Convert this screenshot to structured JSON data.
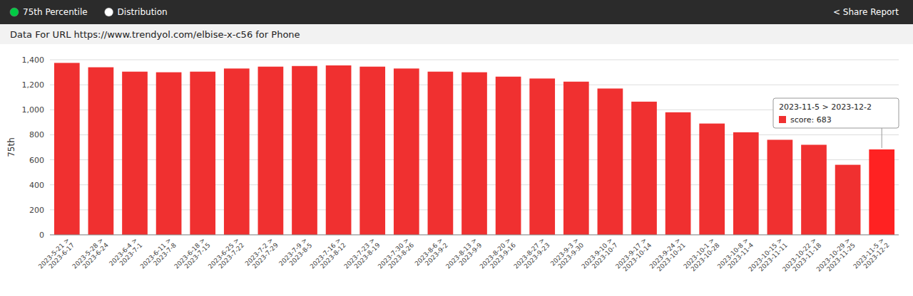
{
  "chart_data": {
    "type": "bar",
    "title": "Data For URL https://www.trendyol.com/elbise-x-c56 for Phone",
    "y_label": "75th",
    "categories": [
      "2023-5-21 >\n2023-6-17",
      "2023-5-28 >\n2023-6-24",
      "2023-6-4 >\n2023-7-1",
      "2023-6-11 >\n2023-7-8",
      "2023-6-18 >\n2023-7-15",
      "2023-6-25 >\n2023-7-22",
      "2023-7-2 >\n2023-7-29",
      "2023-7-9 >\n2023-8-5",
      "2023-7-16 >\n2023-8-12",
      "2023-7-23 >\n2023-8-19",
      "2023-7-30 >\n2023-8-26",
      "2023-8-6 >\n2023-9-2",
      "2023-8-13 >\n2023-9-9",
      "2023-8-20 >\n2023-9-16",
      "2023-8-27 >\n2023-9-23",
      "2023-9-3 >\n2023-9-30",
      "2023-9-10 >\n2023-10-7",
      "2023-9-17 >\n2023-10-14",
      "2023-9-24 >\n2023-10-21",
      "2023-10-1 >\n2023-10-28",
      "2023-10-8 >\n2023-11-4",
      "2023-10-15 >\n2023-11-11",
      "2023-10-22 >\n2023-11-18",
      "2023-10-29 >\n2023-11-25",
      "2023-11-5 >\n2023-12-2"
    ],
    "values": [
      1375,
      1340,
      1305,
      1300,
      1305,
      1330,
      1345,
      1350,
      1355,
      1345,
      1330,
      1305,
      1300,
      1265,
      1250,
      1225,
      1170,
      1065,
      980,
      890,
      820,
      760,
      720,
      560,
      683
    ],
    "colors": [
      "#f03030",
      "#f03030",
      "#f03030",
      "#f03030",
      "#f03030",
      "#f03030",
      "#f03030",
      "#f03030",
      "#f03030",
      "#f03030",
      "#f03030",
      "#f03030",
      "#f03030",
      "#f03030",
      "#f03030",
      "#f03030",
      "#f03030",
      "#f03030",
      "#f03030",
      "#f03030",
      "#f03030",
      "#f03030",
      "#f03030",
      "#f03030",
      "#ff2222"
    ],
    "ylim": [
      0,
      1400
    ],
    "yticks": [
      0,
      200,
      400,
      600,
      800,
      {
        "value": 1000,
        "label": "1,000"
      },
      {
        "value": 1200,
        "label": "1,200"
      },
      {
        "value": 1400,
        "label": "1,400"
      }
    ],
    "grid": true,
    "annotations": [
      {
        "text": "75th Percentile",
        "color": "#00cc44"
      },
      {
        "text": "Distribution",
        "color": "#ffffff"
      },
      {
        "text": "< Share Report"
      },
      {
        "text": "2023-11-5 > 2023-12-2",
        "color": "#f03030"
      },
      {
        "text": "score: 683"
      }
    ]
  }
}
